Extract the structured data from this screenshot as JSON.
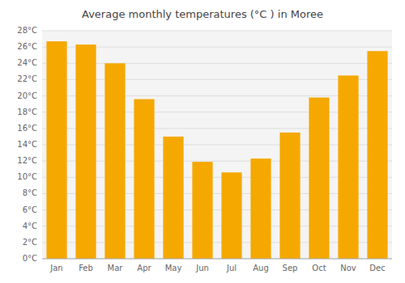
{
  "chart_data": {
    "type": "bar",
    "title": "Average monthly temperatures (°C ) in Moree",
    "categories": [
      "Jan",
      "Feb",
      "Mar",
      "Apr",
      "May",
      "Jun",
      "Jul",
      "Aug",
      "Sep",
      "Oct",
      "Nov",
      "Dec"
    ],
    "values": [
      26.7,
      26.3,
      24.0,
      19.6,
      15.0,
      11.9,
      10.6,
      12.3,
      15.5,
      19.8,
      22.5,
      25.5
    ],
    "color": "#F5A800",
    "ylim": [
      0,
      28
    ],
    "yticks": [
      {
        "value": 0,
        "label": "0°C"
      },
      {
        "value": 2,
        "label": "2°C"
      },
      {
        "value": 4,
        "label": "4°C"
      },
      {
        "value": 6,
        "label": "6°C"
      },
      {
        "value": 8,
        "label": "8°C"
      },
      {
        "value": 10,
        "label": "10°C"
      },
      {
        "value": 12,
        "label": "12°C"
      },
      {
        "value": 14,
        "label": "14°C"
      },
      {
        "value": 16,
        "label": "16°C"
      },
      {
        "value": 18,
        "label": "18°C"
      },
      {
        "value": 20,
        "label": "20°C"
      },
      {
        "value": 22,
        "label": "22°C"
      },
      {
        "value": 24,
        "label": "24°C"
      },
      {
        "value": 26,
        "label": "26°C"
      },
      {
        "value": 28,
        "label": "28°C"
      }
    ],
    "grid": true
  }
}
